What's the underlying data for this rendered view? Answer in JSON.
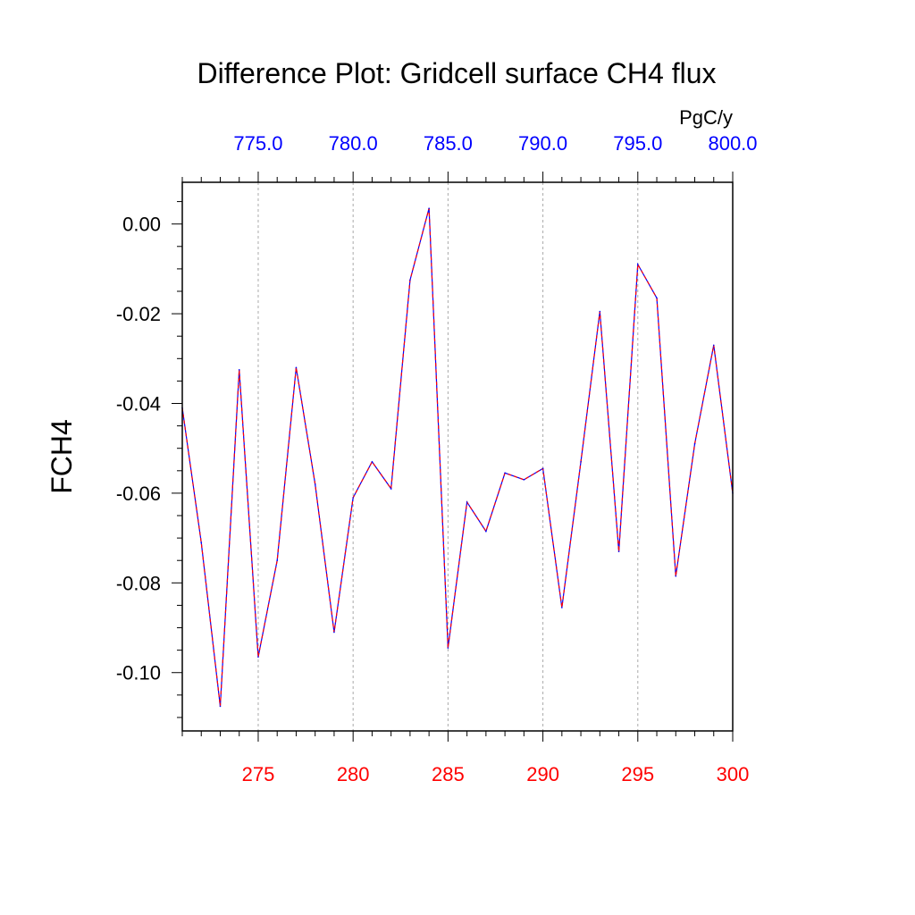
{
  "colors": {
    "bottom_axis": "#ff0000",
    "top_axis": "#0000ff",
    "line_primary": "#ff0000",
    "line_secondary": "#0000ff",
    "grid": "#aaaaaa"
  },
  "chart_data": {
    "type": "line",
    "title": "Difference Plot: Gridcell surface CH4 flux",
    "ylabel": "FCH4",
    "top_axis_units": "PgC/y",
    "xlim": [
      271,
      300
    ],
    "ylim": [
      -0.113,
      0.0093
    ],
    "top_xlim": [
      771,
      800
    ],
    "x_ticks": [
      "275",
      "280",
      "285",
      "290",
      "295",
      "300"
    ],
    "x_tick_values": [
      275,
      280,
      285,
      290,
      295,
      300
    ],
    "top_ticks": [
      "775.0",
      "780.0",
      "785.0",
      "790.0",
      "795.0",
      "800.0"
    ],
    "top_tick_values": [
      775,
      780,
      785,
      790,
      795,
      800
    ],
    "y_ticks": [
      "0.00",
      "-0.02",
      "-0.04",
      "-0.06",
      "-0.08",
      "-0.10"
    ],
    "y_tick_values": [
      0.0,
      -0.02,
      -0.04,
      -0.06,
      -0.08,
      -0.1
    ],
    "grid": "vertical dashed at major x ticks",
    "x": [
      271,
      272,
      273,
      274,
      275,
      276,
      277,
      278,
      279,
      280,
      281,
      282,
      283,
      284,
      285,
      286,
      287,
      288,
      289,
      290,
      291,
      292,
      293,
      294,
      295,
      296,
      297,
      298,
      299,
      300
    ],
    "y": [
      -0.041,
      -0.071,
      -0.1075,
      -0.0325,
      -0.0965,
      -0.075,
      -0.032,
      -0.058,
      -0.091,
      -0.061,
      -0.053,
      -0.059,
      -0.0125,
      0.0035,
      -0.0945,
      -0.062,
      -0.0685,
      -0.0555,
      -0.057,
      -0.0545,
      -0.0855,
      -0.053,
      -0.0195,
      -0.073,
      -0.009,
      -0.0165,
      -0.0785,
      -0.049,
      -0.027,
      -0.06
    ]
  }
}
